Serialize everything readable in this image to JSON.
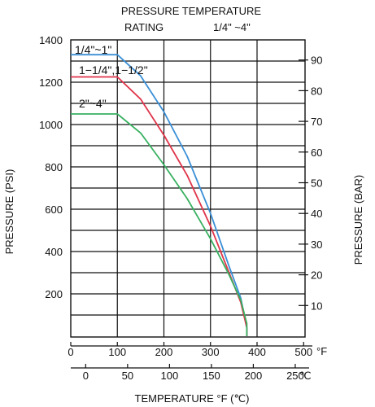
{
  "chart_data": {
    "type": "line",
    "title": "PRESSURE TEMPERATURE",
    "subtitle_left": "RATING",
    "subtitle_right": "1/4\"  ~4\"",
    "xlabel": "TEMPERATURE °F (℃)",
    "ylabel_left": "PRESSURE (PSI)",
    "ylabel_right": "PRESSURE (BAR)",
    "x_unit_f": "°F",
    "x_unit_c": "℃",
    "xlim_f": [
      0,
      400
    ],
    "ylim_psi": [
      0,
      1400
    ],
    "grid": true,
    "x_ticks_f": [
      "0",
      "100",
      "200",
      "300",
      "400",
      "500"
    ],
    "x_ticks_c": [
      "0",
      "50",
      "100",
      "150",
      "200",
      "250"
    ],
    "y_ticks_left": [
      "1400",
      "1200",
      "1000",
      "800",
      "600",
      "400",
      "200"
    ],
    "y_ticks_right": [
      "90",
      "80",
      "70",
      "60",
      "50",
      "40",
      "30",
      "20",
      "10"
    ],
    "series": [
      {
        "name": "1/4\"~1\"",
        "color": "#3a8fd6",
        "points": [
          [
            0,
            1330
          ],
          [
            100,
            1330
          ],
          [
            150,
            1230
          ],
          [
            200,
            1060
          ],
          [
            250,
            850
          ],
          [
            300,
            580
          ],
          [
            340,
            330
          ],
          [
            365,
            180
          ],
          [
            378,
            40
          ],
          [
            378,
            0
          ]
        ]
      },
      {
        "name": "1−1/4\",1−1/2\"",
        "color": "#e0344a",
        "points": [
          [
            0,
            1225
          ],
          [
            100,
            1225
          ],
          [
            150,
            1120
          ],
          [
            200,
            950
          ],
          [
            250,
            760
          ],
          [
            300,
            520
          ],
          [
            340,
            300
          ],
          [
            365,
            160
          ],
          [
            378,
            40
          ],
          [
            378,
            0
          ]
        ]
      },
      {
        "name": "2\"~4\"",
        "color": "#38b060",
        "points": [
          [
            0,
            1050
          ],
          [
            100,
            1050
          ],
          [
            150,
            960
          ],
          [
            200,
            810
          ],
          [
            250,
            650
          ],
          [
            300,
            460
          ],
          [
            340,
            290
          ],
          [
            365,
            170
          ],
          [
            378,
            60
          ],
          [
            378,
            0
          ]
        ]
      }
    ]
  }
}
